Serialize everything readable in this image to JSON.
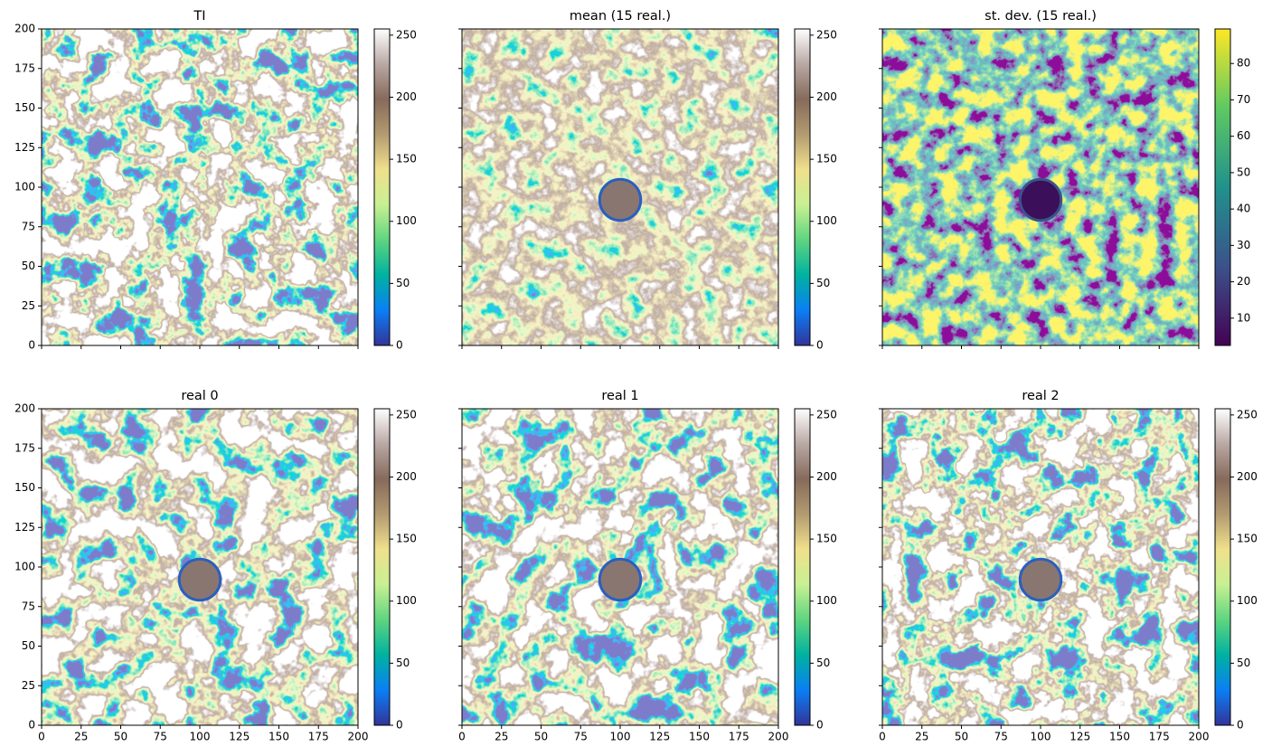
{
  "chart_data": [
    {
      "type": "image",
      "title": "TI",
      "xlim": [
        0,
        200
      ],
      "ylim": [
        0,
        200
      ],
      "xticks": [
        0,
        25,
        50,
        75,
        100,
        125,
        150,
        175,
        200
      ],
      "yticks": [
        0,
        25,
        50,
        75,
        100,
        125,
        150,
        175,
        200
      ],
      "colorbar": {
        "lim": [
          0,
          255
        ],
        "ticks": [
          0,
          50,
          100,
          150,
          200,
          250
        ],
        "colors": [
          "#333399",
          "#0a7ff5",
          "#00b2a0",
          "#5ed57f",
          "#c8f093",
          "#f0e08c",
          "#b39b70",
          "#866a5b",
          "#b9a8a4",
          "#ffffff"
        ]
      }
    },
    {
      "type": "image",
      "title": "mean (15 real.)",
      "xlim": [
        0,
        200
      ],
      "ylim": [
        0,
        200
      ],
      "xticks": [
        0,
        25,
        50,
        75,
        100,
        125,
        150,
        175,
        200
      ],
      "yticks": [
        0,
        25,
        50,
        75,
        100,
        125,
        150,
        175,
        200
      ],
      "colorbar": {
        "lim": [
          0,
          255
        ],
        "ticks": [
          0,
          50,
          100,
          150,
          200,
          250
        ],
        "colors": [
          "#333399",
          "#0a7ff5",
          "#00b2a0",
          "#5ed57f",
          "#c8f093",
          "#f0e08c",
          "#b39b70",
          "#866a5b",
          "#b9a8a4",
          "#ffffff"
        ]
      }
    },
    {
      "type": "image",
      "title": "st. dev. (15 real.)",
      "xlim": [
        0,
        200
      ],
      "ylim": [
        0,
        200
      ],
      "xticks": [
        0,
        25,
        50,
        75,
        100,
        125,
        150,
        175,
        200
      ],
      "yticks": [
        0,
        25,
        50,
        75,
        100,
        125,
        150,
        175,
        200
      ],
      "colorbar": {
        "lim": [
          2.5,
          89.5
        ],
        "ticks": [
          10,
          20,
          30,
          40,
          50,
          60,
          70,
          80
        ],
        "colors": [
          "#440154",
          "#3b528b",
          "#21918c",
          "#5ec962",
          "#fde725"
        ]
      }
    },
    {
      "type": "image",
      "title": "real 0",
      "xlim": [
        0,
        200
      ],
      "ylim": [
        0,
        200
      ],
      "xticks": [
        0,
        25,
        50,
        75,
        100,
        125,
        150,
        175,
        200
      ],
      "yticks": [
        0,
        25,
        50,
        75,
        100,
        125,
        150,
        175,
        200
      ],
      "colorbar": {
        "lim": [
          0,
          255
        ],
        "ticks": [
          0,
          50,
          100,
          150,
          200,
          250
        ],
        "colors": [
          "#333399",
          "#0a7ff5",
          "#00b2a0",
          "#5ed57f",
          "#c8f093",
          "#f0e08c",
          "#b39b70",
          "#866a5b",
          "#b9a8a4",
          "#ffffff"
        ]
      }
    },
    {
      "type": "image",
      "title": "real 1",
      "xlim": [
        0,
        200
      ],
      "ylim": [
        0,
        200
      ],
      "xticks": [
        0,
        25,
        50,
        75,
        100,
        125,
        150,
        175,
        200
      ],
      "yticks": [
        0,
        25,
        50,
        75,
        100,
        125,
        150,
        175,
        200
      ],
      "colorbar": {
        "lim": [
          0,
          255
        ],
        "ticks": [
          0,
          50,
          100,
          150,
          200,
          250
        ],
        "colors": [
          "#333399",
          "#0a7ff5",
          "#00b2a0",
          "#5ed57f",
          "#c8f093",
          "#f0e08c",
          "#b39b70",
          "#866a5b",
          "#b9a8a4",
          "#ffffff"
        ]
      }
    },
    {
      "type": "image",
      "title": "real 2",
      "xlim": [
        0,
        200
      ],
      "ylim": [
        0,
        200
      ],
      "xticks": [
        0,
        25,
        50,
        75,
        100,
        125,
        150,
        175,
        200
      ],
      "yticks": [
        0,
        25,
        50,
        75,
        100,
        125,
        150,
        175,
        200
      ],
      "colorbar": {
        "lim": [
          0,
          255
        ],
        "ticks": [
          0,
          50,
          100,
          150,
          200,
          250
        ],
        "colors": [
          "#333399",
          "#0a7ff5",
          "#00b2a0",
          "#5ed57f",
          "#c8f093",
          "#f0e08c",
          "#b39b70",
          "#866a5b",
          "#b9a8a4",
          "#ffffff"
        ]
      }
    }
  ]
}
